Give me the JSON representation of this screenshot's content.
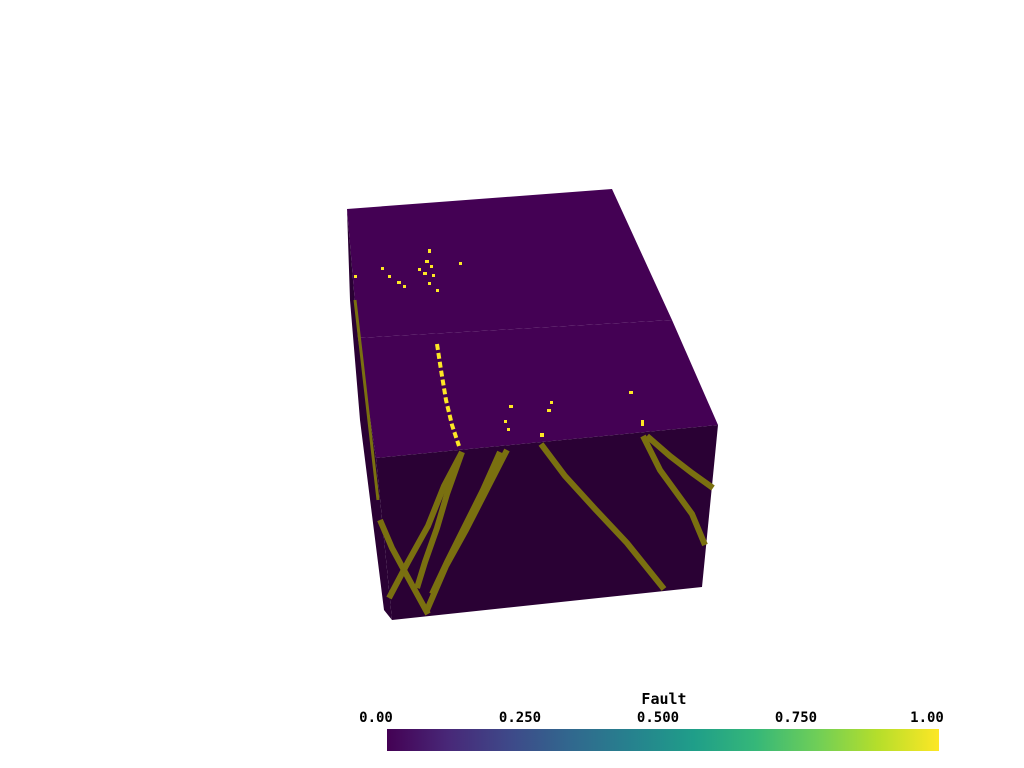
{
  "scalar_bar": {
    "title": "Fault",
    "ticks": [
      "0.00",
      "0.250",
      "0.500",
      "0.750",
      "1.00"
    ],
    "range": [
      0,
      1
    ],
    "colormap": "viridis",
    "colors": [
      "#440154",
      "#482878",
      "#3e4989",
      "#31688e",
      "#26828e",
      "#1f9e89",
      "#35b779",
      "#6ece58",
      "#b5de2b",
      "#fde725"
    ]
  },
  "volume": {
    "background_color": "#440154",
    "fault_color": "#fde725",
    "shaded_face_color": "#2a0134",
    "shaded_fault_color": "#7a7010"
  }
}
